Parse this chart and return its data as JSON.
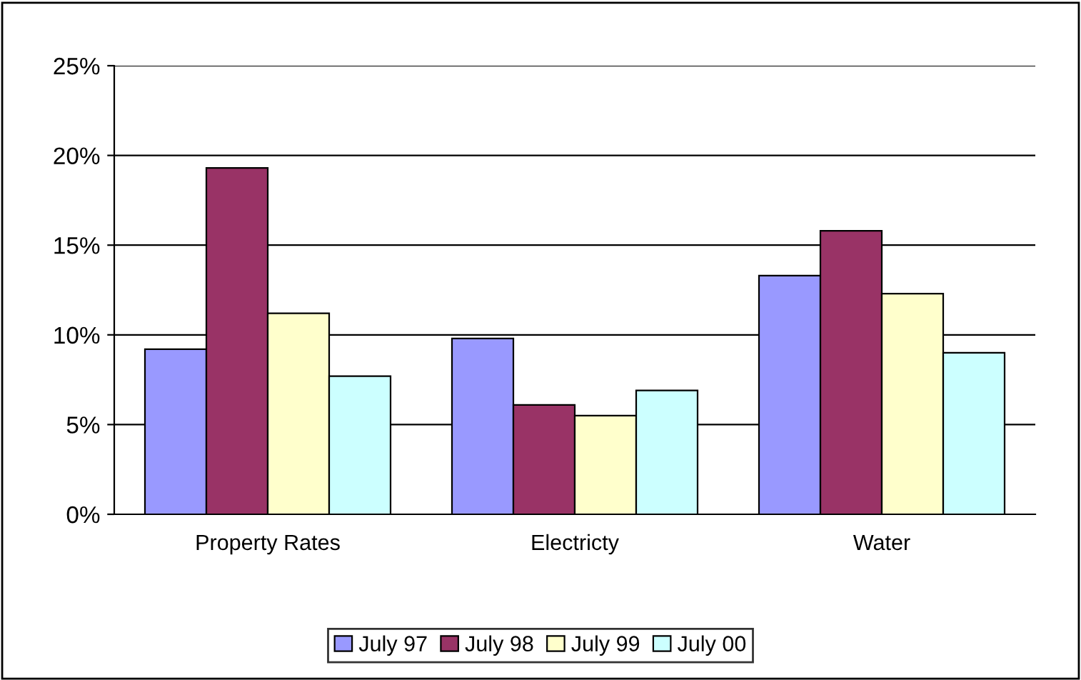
{
  "chart_data": {
    "type": "bar",
    "categories": [
      "Property Rates",
      "Electricty",
      "Water"
    ],
    "series": [
      {
        "name": "July 97",
        "color": "#9999ff",
        "values": [
          9.2,
          9.8,
          13.3
        ]
      },
      {
        "name": "July 98",
        "color": "#993366",
        "values": [
          19.3,
          6.1,
          15.8
        ]
      },
      {
        "name": "July 99",
        "color": "#ffffcc",
        "values": [
          11.2,
          5.5,
          12.3
        ]
      },
      {
        "name": "July 00",
        "color": "#ccffff",
        "values": [
          7.7,
          6.9,
          9.0
        ]
      }
    ],
    "ylim": [
      0,
      25
    ],
    "yticks": [
      {
        "value": 0,
        "label": "0%"
      },
      {
        "value": 5,
        "label": "5%"
      },
      {
        "value": 10,
        "label": "10%"
      },
      {
        "value": 15,
        "label": "15%"
      },
      {
        "value": 20,
        "label": "20%"
      },
      {
        "value": 25,
        "label": "25%"
      }
    ],
    "grid": "y",
    "legend": "bottom"
  }
}
